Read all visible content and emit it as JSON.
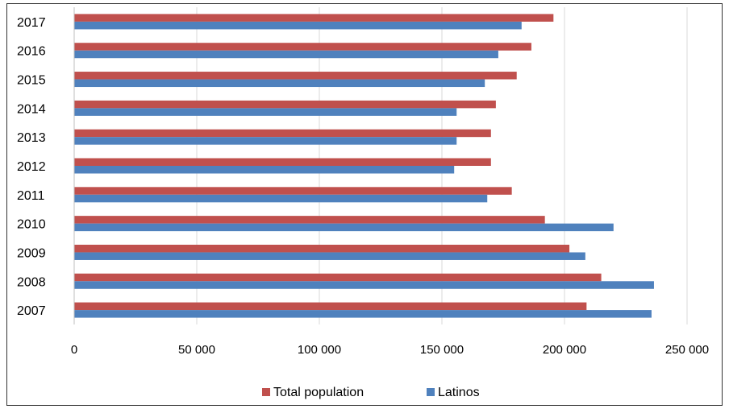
{
  "chart_data": {
    "type": "bar",
    "orientation": "horizontal",
    "categories": [
      "2007",
      "2008",
      "2009",
      "2010",
      "2011",
      "2012",
      "2013",
      "2014",
      "2015",
      "2016",
      "2017"
    ],
    "series": [
      {
        "name": "Total population",
        "color": "#c0504d",
        "values": [
          209000,
          215000,
          202000,
          192000,
          178500,
          170000,
          170000,
          172000,
          180500,
          186500,
          195500
        ]
      },
      {
        "name": "Latinos",
        "color": "#4f81bd",
        "values": [
          235500,
          236500,
          208500,
          220000,
          168500,
          155000,
          156000,
          156000,
          167500,
          173000,
          182500
        ]
      }
    ],
    "xlim": [
      0,
      250000
    ],
    "xticks": [
      0,
      50000,
      100000,
      150000,
      200000,
      250000
    ],
    "xtick_labels": [
      "0",
      "50 000",
      "100 000",
      "150 000",
      "200 000",
      "250 000"
    ],
    "title": "",
    "xlabel": "",
    "ylabel": "",
    "grid": "vertical",
    "legend_position": "bottom"
  }
}
